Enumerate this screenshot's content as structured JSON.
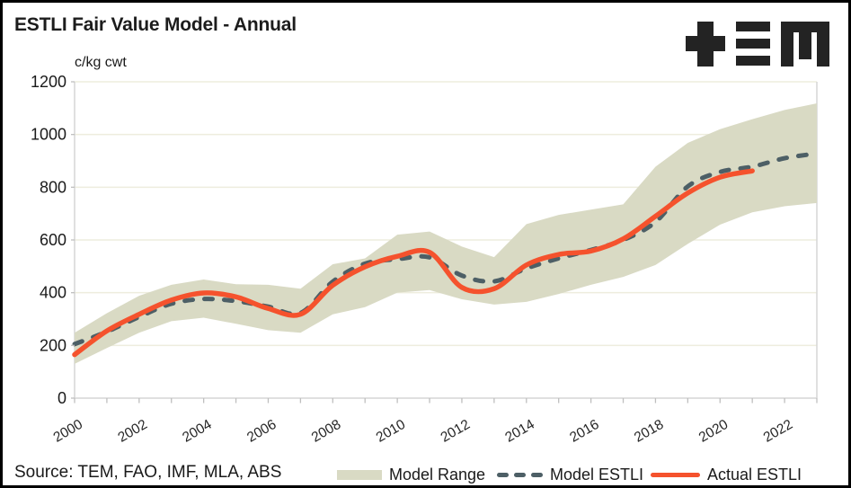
{
  "header": {
    "title": "ESTLI Fair Value Model - Annual",
    "logo": "TEM"
  },
  "footer": {
    "source": "Source: TEM, FAO, IMF, MLA, ABS"
  },
  "legend": {
    "items": [
      {
        "label": "Model Range",
        "swatch": "band"
      },
      {
        "label": "Model ESTLI",
        "swatch": "dashed-line"
      },
      {
        "label": "Actual ESTLI",
        "swatch": "solid-line"
      }
    ]
  },
  "colors": {
    "band": "#d9dac4",
    "model_line": "#4d5f66",
    "actual_line": "#f5522d",
    "gridline": "#eeedde",
    "frame": "#d6d6d6",
    "tick": "#bfbfbf",
    "axis_text": "#1a1a1a",
    "x_label_text": "#262626",
    "logo": "#232323"
  },
  "chart_data": {
    "type": "line",
    "title": "ESTLI Fair Value Model - Annual",
    "unit_label": "c/kg cwt",
    "xlabel": "",
    "ylabel": "c/kg cwt",
    "ylim": [
      0,
      1200
    ],
    "y_ticks": [
      0,
      200,
      400,
      600,
      800,
      1000,
      1200
    ],
    "x": [
      2000,
      2001,
      2002,
      2003,
      2004,
      2005,
      2006,
      2007,
      2008,
      2009,
      2010,
      2011,
      2012,
      2013,
      2014,
      2015,
      2016,
      2017,
      2018,
      2019,
      2020,
      2021,
      2022,
      2023
    ],
    "x_labels": [
      2000,
      2002,
      2004,
      2006,
      2008,
      2010,
      2012,
      2014,
      2016,
      2018,
      2020,
      2022
    ],
    "grid": "horizontal",
    "legend_position": "bottom",
    "series": [
      {
        "name": "Model Range",
        "type": "band",
        "low": [
          130,
          190,
          248,
          292,
          305,
          282,
          258,
          248,
          318,
          345,
          400,
          410,
          375,
          355,
          365,
          395,
          430,
          460,
          505,
          585,
          658,
          705,
          728,
          740
        ],
        "high": [
          248,
          322,
          388,
          430,
          450,
          432,
          430,
          415,
          508,
          530,
          620,
          632,
          575,
          535,
          660,
          695,
          715,
          735,
          878,
          968,
          1020,
          1058,
          1093,
          1118
        ]
      },
      {
        "name": "Model ESTLI",
        "type": "line",
        "style": "dashed",
        "values": [
          205,
          252,
          308,
          358,
          376,
          368,
          347,
          323,
          442,
          510,
          527,
          534,
          465,
          443,
          492,
          530,
          562,
          600,
          668,
          803,
          858,
          878,
          910,
          928
        ]
      },
      {
        "name": "Actual ESTLI",
        "type": "line",
        "style": "solid",
        "values": [
          165,
          255,
          318,
          372,
          399,
          384,
          340,
          318,
          428,
          498,
          538,
          553,
          420,
          415,
          505,
          545,
          558,
          604,
          690,
          778,
          838,
          862,
          null,
          null
        ]
      }
    ]
  }
}
